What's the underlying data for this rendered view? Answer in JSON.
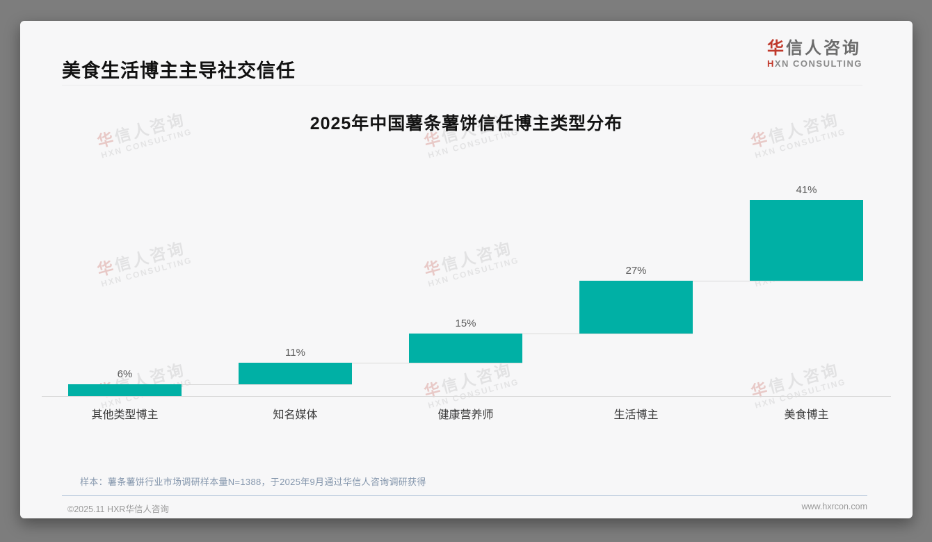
{
  "page": {
    "header_title": "美食生活博主主导社交信任",
    "logo": {
      "cn_first": "华",
      "cn_rest": "信人咨询",
      "en_first": "H",
      "en_rest": "XN CONSULTING"
    },
    "watermark": {
      "cn_first": "华",
      "cn_rest": "信人咨询",
      "en": "HXN CONSULTING"
    },
    "footer": {
      "sample_note": "样本：薯条薯饼行业市场调研样本量N=1388，于2025年9月通过华信人咨询调研获得",
      "copyright": "©2025.11 HXR华信人咨询",
      "website": "www.hxrcon.com"
    }
  },
  "chart_data": {
    "type": "bar",
    "variant": "waterfall-staircase",
    "title": "2025年中国薯条薯饼信任博主类型分布",
    "categories": [
      "其他类型博主",
      "知名媒体",
      "健康营养师",
      "生活博主",
      "美食博主"
    ],
    "values": [
      6,
      11,
      15,
      27,
      41
    ],
    "value_labels": [
      "6%",
      "11%",
      "15%",
      "27%",
      "41%"
    ],
    "unit": "%",
    "ylim": [
      0,
      100
    ],
    "total_of_values": 100,
    "grid": false,
    "legend": false,
    "bar_color": "#00b0a5",
    "value_label_color": "#595959",
    "category_label_color": "#3a3a3a",
    "axis_line_color": "#d9d9d9"
  }
}
